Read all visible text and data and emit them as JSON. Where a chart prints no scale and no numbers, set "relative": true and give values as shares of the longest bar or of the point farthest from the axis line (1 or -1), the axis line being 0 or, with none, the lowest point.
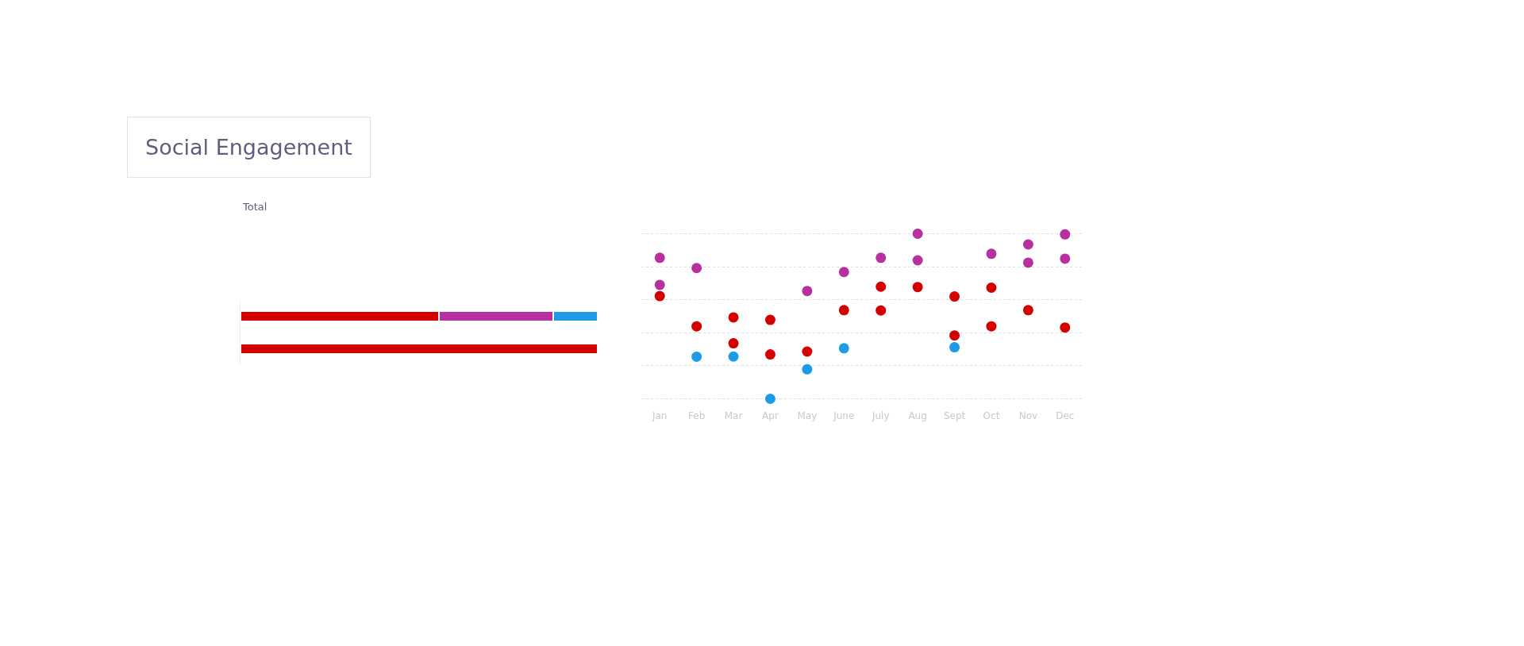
{
  "chart_data": [
    {
      "type": "bar",
      "title": "Social Engagement",
      "annotations": [
        "Total"
      ],
      "orientation": "horizontal",
      "stacked": true,
      "relative": true,
      "categories": [
        null,
        null
      ],
      "series": [
        {
          "color": "#d40000",
          "values": [
            0.555,
            1.0
          ]
        },
        {
          "color": "#b82fa0",
          "values": [
            0.32,
            null
          ]
        },
        {
          "color": "#1e9be6",
          "values": [
            0.125,
            null
          ]
        }
      ]
    },
    {
      "type": "scatter",
      "relative": true,
      "marker": "circle",
      "grid": "y",
      "categories": [
        "Jan",
        "Feb",
        "Mar",
        "Apr",
        "May",
        "June",
        "July",
        "Aug",
        "Sept",
        "Oct",
        "Nov",
        "Dec"
      ],
      "series": [
        {
          "color": "#b82fa0",
          "x": [
            "Jan",
            "Jan",
            "Feb",
            "May",
            "June",
            "July",
            "Aug",
            "Aug",
            "Oct",
            "Nov",
            "Nov",
            "Dec",
            "Dec"
          ],
          "values": [
            0.854,
            0.69,
            0.792,
            0.653,
            0.768,
            0.854,
            1.0,
            0.839,
            0.878,
            0.935,
            0.825,
            0.996,
            0.849
          ]
        },
        {
          "color": "#d40000",
          "x": [
            "Jan",
            "Feb",
            "Mar",
            "Mar",
            "Apr",
            "Apr",
            "May",
            "June",
            "July",
            "July",
            "Aug",
            "Sept",
            "Sept",
            "Oct",
            "Oct",
            "Nov",
            "Dec"
          ],
          "values": [
            0.622,
            0.439,
            0.493,
            0.336,
            0.478,
            0.269,
            0.286,
            0.537,
            0.679,
            0.535,
            0.677,
            0.62,
            0.384,
            0.673,
            0.439,
            0.537,
            0.432
          ]
        },
        {
          "color": "#1e9be6",
          "x": [
            "Feb",
            "Mar",
            "Apr",
            "May",
            "June",
            "Sept"
          ],
          "values": [
            0.255,
            0.256,
            0.0,
            0.179,
            0.306,
            0.312
          ]
        }
      ]
    }
  ]
}
